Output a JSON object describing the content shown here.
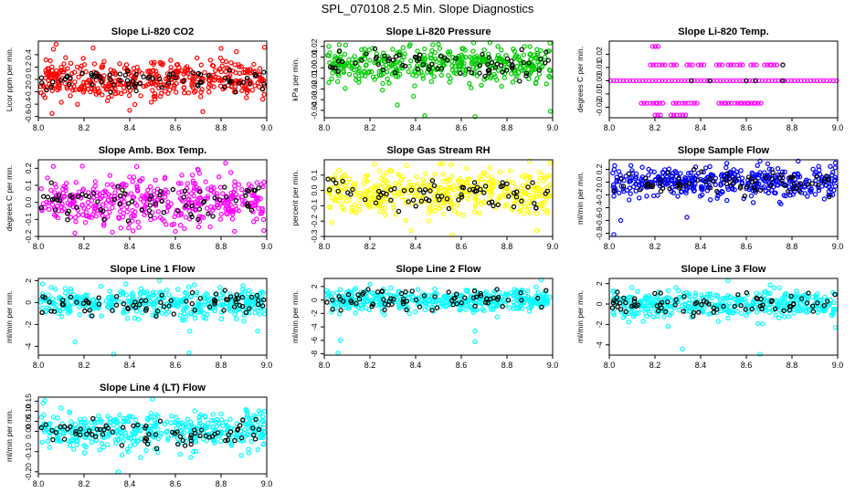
{
  "figure_title": "SPL_070108  2.5 Min. Slope Diagnostics",
  "chart_data": [
    {
      "type": "scatter",
      "title": "Slope Li-820 CO2",
      "ylabel": "Licor ppm per min.",
      "color": "#ff0000",
      "xlim": [
        8.0,
        9.0
      ],
      "ylim": [
        -0.62,
        0.62
      ],
      "xticks": [
        8.0,
        8.2,
        8.4,
        8.6,
        8.8,
        9.0
      ],
      "xtick_labels": [
        "8.0",
        "8.2",
        "8.4",
        "8.6",
        "8.8",
        "9.0"
      ],
      "yticks": [
        -0.6,
        -0.4,
        -0.2,
        0.0,
        0.2,
        0.4
      ],
      "ytick_labels": [
        "-0.6",
        "-0.4",
        "-0.2",
        "0.0",
        "0.2",
        "0.4"
      ],
      "n_points": 420,
      "spread": 0.16,
      "bias": 0.0,
      "black_spread": 0.09,
      "seed": 11,
      "outliers": [
        {
          "x": 8.24,
          "y": 0.51
        },
        {
          "x": 8.99,
          "y": 0.52
        },
        {
          "x": 8.8,
          "y": 0.5
        },
        {
          "x": 8.06,
          "y": -0.55
        },
        {
          "x": 8.4,
          "y": -0.5
        },
        {
          "x": 8.72,
          "y": -0.52
        }
      ]
    },
    {
      "type": "scatter",
      "title": "Slope Li-820 Pressure",
      "ylabel": "kPa per min.",
      "color": "#00cc00",
      "xlim": [
        8.0,
        9.0
      ],
      "ylim": [
        -0.047,
        0.025
      ],
      "xticks": [
        8.0,
        8.2,
        8.4,
        8.6,
        8.8,
        9.0
      ],
      "xtick_labels": [
        "8.0",
        "8.2",
        "8.4",
        "8.6",
        "8.8",
        "9.0"
      ],
      "yticks": [
        -0.04,
        -0.03,
        -0.02,
        -0.01,
        0.0,
        0.01,
        0.02
      ],
      "ytick_labels": [
        "-0.04",
        "-0.03",
        "-0.02",
        "-0.01",
        "0.00",
        "0.01",
        "0.02"
      ],
      "n_points": 420,
      "spread": 0.0085,
      "bias": 0.004,
      "black_spread": 0.006,
      "seed": 23,
      "outliers": [
        {
          "x": 8.5,
          "y": 0.022
        },
        {
          "x": 8.02,
          "y": 0.02
        },
        {
          "x": 8.44,
          "y": -0.045
        },
        {
          "x": 8.66,
          "y": -0.046
        },
        {
          "x": 8.99,
          "y": -0.041
        },
        {
          "x": 8.32,
          "y": -0.035
        }
      ]
    },
    {
      "type": "scatter",
      "title": "Slope Li-820 Temp.",
      "ylabel": "degrees C per min.",
      "color": "#ff00ff",
      "xlim": [
        8.0,
        9.0
      ],
      "ylim": [
        -0.028,
        0.03
      ],
      "xticks": [
        8.0,
        8.2,
        8.4,
        8.6,
        8.8,
        9.0
      ],
      "xtick_labels": [
        "8.0",
        "8.2",
        "8.4",
        "8.6",
        "8.8",
        "9.0"
      ],
      "yticks": [
        -0.02,
        -0.01,
        0.0,
        0.01,
        0.02
      ],
      "ytick_labels": [
        "-0.02",
        "-0.01",
        "0.00",
        "0.01",
        "0.02"
      ],
      "n_points": 0,
      "spread": 0,
      "bias": 0,
      "black_spread": 0,
      "seed": 5,
      "quantized": true,
      "levels": [
        -0.026,
        -0.017,
        0.0,
        0.012,
        0.026
      ],
      "outliers": []
    },
    {
      "type": "scatter",
      "title": "Slope Amb. Box Temp.",
      "ylabel": "degrees C per min.",
      "color": "#ff00ff",
      "xlim": [
        8.0,
        9.0
      ],
      "ylim": [
        -0.2,
        0.25
      ],
      "xticks": [
        8.0,
        8.2,
        8.4,
        8.6,
        8.8,
        9.0
      ],
      "xtick_labels": [
        "8.0",
        "8.2",
        "8.4",
        "8.6",
        "8.8",
        "9.0"
      ],
      "yticks": [
        -0.2,
        -0.1,
        0.0,
        0.1,
        0.2
      ],
      "ytick_labels": [
        "-0.2",
        "-0.1",
        "0.0",
        "0.1",
        "0.2"
      ],
      "n_points": 420,
      "spread": 0.07,
      "bias": 0.0,
      "black_spread": 0.05,
      "seed": 37,
      "outliers": [
        {
          "x": 8.82,
          "y": 0.23
        },
        {
          "x": 8.7,
          "y": 0.19
        },
        {
          "x": 8.43,
          "y": 0.21
        },
        {
          "x": 8.16,
          "y": -0.18
        },
        {
          "x": 8.6,
          "y": -0.17
        }
      ]
    },
    {
      "type": "scatter",
      "title": "Slope Gas Stream RH",
      "ylabel": "percent per min.",
      "color": "#ffff00",
      "xlim": [
        8.0,
        9.0
      ],
      "ylim": [
        -0.3,
        0.2
      ],
      "xticks": [
        8.0,
        8.2,
        8.4,
        8.6,
        8.8,
        9.0
      ],
      "xtick_labels": [
        "8.0",
        "8.2",
        "8.4",
        "8.6",
        "8.8",
        "9.0"
      ],
      "yticks": [
        -0.3,
        -0.2,
        -0.1,
        0.0,
        0.1
      ],
      "ytick_labels": [
        "-0.3",
        "-0.2",
        "-0.1",
        "0.0",
        "0.1"
      ],
      "n_points": 420,
      "spread": 0.075,
      "bias": -0.02,
      "black_spread": 0.05,
      "seed": 41,
      "outliers": [
        {
          "x": 8.56,
          "y": -0.29
        },
        {
          "x": 8.38,
          "y": -0.26
        },
        {
          "x": 8.99,
          "y": 0.18
        },
        {
          "x": 8.22,
          "y": 0.17
        }
      ]
    },
    {
      "type": "scatter",
      "title": "Slope Sample Flow",
      "ylabel": "ml/min per min.",
      "color": "#0000ff",
      "xlim": [
        8.0,
        9.0
      ],
      "ylim": [
        -0.85,
        0.35
      ],
      "xticks": [
        8.0,
        8.2,
        8.4,
        8.6,
        8.8,
        9.0
      ],
      "xtick_labels": [
        "8.0",
        "8.2",
        "8.4",
        "8.6",
        "8.8",
        "9.0"
      ],
      "yticks": [
        -0.8,
        -0.6,
        -0.4,
        -0.2,
        0.0,
        0.2
      ],
      "ytick_labels": [
        "-0.8",
        "-0.6",
        "-0.4",
        "-0.2",
        "0.0",
        "0.2"
      ],
      "n_points": 420,
      "spread": 0.12,
      "bias": 0.0,
      "black_spread": 0.09,
      "seed": 53,
      "outliers": [
        {
          "x": 8.02,
          "y": -0.82
        },
        {
          "x": 8.34,
          "y": -0.55
        },
        {
          "x": 8.05,
          "y": -0.6
        },
        {
          "x": 8.66,
          "y": 0.33
        },
        {
          "x": 8.99,
          "y": 0.3
        }
      ]
    },
    {
      "type": "scatter",
      "title": "Slope Line 1 Flow",
      "ylabel": "ml/min per min.",
      "color": "#00ffff",
      "xlim": [
        8.0,
        9.0
      ],
      "ylim": [
        -4.8,
        2.2
      ],
      "xticks": [
        8.0,
        8.2,
        8.4,
        8.6,
        8.8,
        9.0
      ],
      "xtick_labels": [
        "8.0",
        "8.2",
        "8.4",
        "8.6",
        "8.8",
        "9.0"
      ],
      "yticks": [
        -4,
        -2,
        0,
        2
      ],
      "ytick_labels": [
        "-4",
        "-2",
        "0",
        "2"
      ],
      "n_points": 420,
      "spread": 0.65,
      "bias": 0.0,
      "black_spread": 0.55,
      "seed": 61,
      "outliers": [
        {
          "x": 8.33,
          "y": -4.7
        },
        {
          "x": 8.66,
          "y": -4.6
        },
        {
          "x": 8.16,
          "y": -3.6
        },
        {
          "x": 8.96,
          "y": -2.6
        },
        {
          "x": 8.9,
          "y": -1.7
        },
        {
          "x": 8.53,
          "y": 2.0
        }
      ]
    },
    {
      "type": "scatter",
      "title": "Slope Line 2 Flow",
      "ylabel": "ml/min per min.",
      "color": "#00ffff",
      "xlim": [
        8.0,
        9.0
      ],
      "ylim": [
        -8.2,
        3.2
      ],
      "xticks": [
        8.0,
        8.2,
        8.4,
        8.6,
        8.8,
        9.0
      ],
      "xtick_labels": [
        "8.0",
        "8.2",
        "8.4",
        "8.6",
        "8.8",
        "9.0"
      ],
      "yticks": [
        -8,
        -6,
        -4,
        -2,
        0,
        2
      ],
      "ytick_labels": [
        "-8",
        "-6",
        "-4",
        "-2",
        "0",
        "2"
      ],
      "n_points": 420,
      "spread": 0.8,
      "bias": 0.0,
      "black_spread": 0.6,
      "seed": 71,
      "outliers": [
        {
          "x": 8.06,
          "y": -7.9
        },
        {
          "x": 8.07,
          "y": -6.0
        },
        {
          "x": 8.66,
          "y": -6.2
        },
        {
          "x": 8.66,
          "y": -4.6
        },
        {
          "x": 8.95,
          "y": 3.0
        }
      ]
    },
    {
      "type": "scatter",
      "title": "Slope Line 3 Flow",
      "ylabel": "ml/min per min.",
      "color": "#00ffff",
      "xlim": [
        8.0,
        9.0
      ],
      "ylim": [
        -5.0,
        2.5
      ],
      "xticks": [
        8.0,
        8.2,
        8.4,
        8.6,
        8.8,
        9.0
      ],
      "xtick_labels": [
        "8.0",
        "8.2",
        "8.4",
        "8.6",
        "8.8",
        "9.0"
      ],
      "yticks": [
        -4,
        -2,
        0,
        2
      ],
      "ytick_labels": [
        "-4",
        "-2",
        "0",
        "2"
      ],
      "n_points": 420,
      "spread": 0.65,
      "bias": 0.0,
      "black_spread": 0.55,
      "seed": 83,
      "outliers": [
        {
          "x": 8.32,
          "y": -4.4
        },
        {
          "x": 8.66,
          "y": -4.9
        },
        {
          "x": 8.99,
          "y": -2.3
        },
        {
          "x": 8.52,
          "y": 2.3
        }
      ]
    },
    {
      "type": "scatter",
      "title": "Slope Line 4 (LT) Flow",
      "ylabel": "ml/min per min.",
      "color": "#00ffff",
      "xlim": [
        8.0,
        9.0
      ],
      "ylim": [
        -0.21,
        0.17
      ],
      "xticks": [
        8.0,
        8.2,
        8.4,
        8.6,
        8.8,
        9.0
      ],
      "xtick_labels": [
        "8.0",
        "8.2",
        "8.4",
        "8.6",
        "8.8",
        "9.0"
      ],
      "yticks": [
        -0.2,
        -0.1,
        0.0,
        0.05,
        0.1,
        0.15
      ],
      "ytick_labels": [
        "-0.20",
        "-0.10",
        "0.00",
        "0.05",
        "0.10",
        "0.15"
      ],
      "n_points": 420,
      "spread": 0.05,
      "bias": 0.0,
      "black_spread": 0.035,
      "seed": 97,
      "outliers": [
        {
          "x": 8.35,
          "y": -0.2
        },
        {
          "x": 8.5,
          "y": 0.16
        },
        {
          "x": 8.99,
          "y": 0.1
        },
        {
          "x": 8.02,
          "y": 0.14
        }
      ]
    }
  ]
}
